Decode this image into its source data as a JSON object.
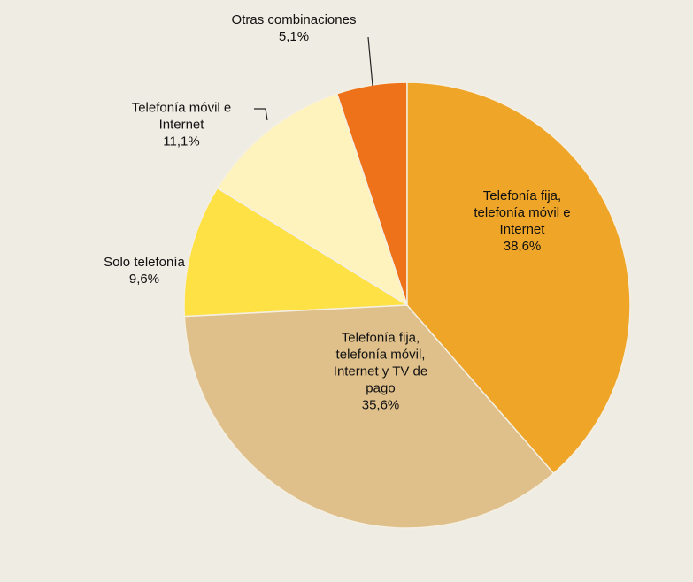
{
  "chart_data": {
    "type": "pie",
    "categories": [
      "Telefonía fija,\ntelefonía móvil e\nInternet",
      "Telefonía fija,\ntelefonía móvil,\nInternet y TV de\npago",
      "Solo telefonía",
      "Telefonía móvil e\nInternet",
      "Otras combinaciones"
    ],
    "values": [
      38.6,
      35.6,
      9.6,
      11.1,
      5.1
    ],
    "value_labels": [
      "38,6%",
      "35,6%",
      "9,6%",
      "11,1%",
      "5,1%"
    ],
    "colors": [
      "#eea528",
      "#dfc08b",
      "#fee245",
      "#fef3bd",
      "#ee7219"
    ]
  }
}
